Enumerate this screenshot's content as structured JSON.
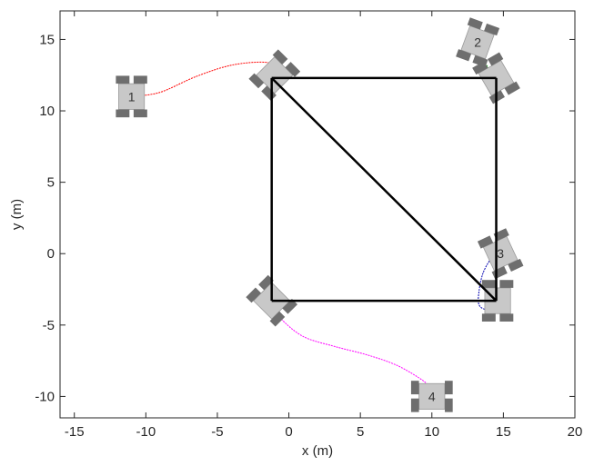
{
  "chart_data": {
    "type": "scatter",
    "title": "",
    "xlabel": "x (m)",
    "ylabel": "y (m)",
    "xlim": [
      -16,
      20
    ],
    "ylim": [
      -11.5,
      17
    ],
    "xticks": [
      -15,
      -10,
      -5,
      0,
      5,
      10,
      15,
      20
    ],
    "xtick_labels": [
      "-15",
      "-10",
      "-5",
      "0",
      "5",
      "10",
      "15",
      "20"
    ],
    "yticks": [
      -10,
      -5,
      0,
      5,
      10,
      15
    ],
    "ytick_labels": [
      "-10",
      "-5",
      "0",
      "5",
      "10",
      "15"
    ],
    "grid": false,
    "legend": "none",
    "formation": {
      "color": "#000000",
      "vertices": [
        {
          "x": -1.2,
          "y": 12.3
        },
        {
          "x": 14.5,
          "y": 12.3
        },
        {
          "x": 14.5,
          "y": -3.3
        },
        {
          "x": -1.2,
          "y": -3.3
        }
      ],
      "edges": [
        [
          0,
          1
        ],
        [
          1,
          2
        ],
        [
          2,
          3
        ],
        [
          3,
          0
        ],
        [
          0,
          2
        ]
      ]
    },
    "robots": [
      {
        "label": "1",
        "color": "#ff0000",
        "start": {
          "x": -11,
          "y": 11,
          "heading": 0
        },
        "end": {
          "x": -1,
          "y": 12.5,
          "heading": -45
        },
        "path": [
          [
            -11,
            11
          ],
          [
            -9,
            11.3
          ],
          [
            -6.5,
            12.4
          ],
          [
            -4,
            13.2
          ],
          [
            -1.6,
            13.4
          ],
          [
            -0.8,
            12.9
          ],
          [
            -1.1,
            12.3
          ]
        ]
      },
      {
        "label": "2",
        "color": "#00a000",
        "start": {
          "x": 13.2,
          "y": 14.8,
          "heading": -20
        },
        "end": {
          "x": 14.5,
          "y": 12.3,
          "heading": 30
        },
        "path": [
          [
            13.2,
            14.8
          ],
          [
            13.4,
            14.2
          ],
          [
            13.7,
            13.4
          ],
          [
            14.1,
            12.8
          ],
          [
            14.5,
            12.3
          ]
        ]
      },
      {
        "label": "3",
        "color": "#0000b0",
        "start": {
          "x": 14.8,
          "y": 0,
          "heading": 25
        },
        "end": {
          "x": 14.6,
          "y": -3.3,
          "heading": 0
        },
        "path": [
          [
            14.8,
            0
          ],
          [
            14.2,
            -0.3
          ],
          [
            13.6,
            -1.3
          ],
          [
            13.3,
            -2.6
          ],
          [
            13.3,
            -3.6
          ],
          [
            13.9,
            -3.9
          ],
          [
            14.5,
            -3.4
          ],
          [
            14.6,
            -3.3
          ]
        ]
      },
      {
        "label": "4",
        "color": "#ff00ff",
        "start": {
          "x": 10,
          "y": -10,
          "heading": 90
        },
        "end": {
          "x": -1.2,
          "y": -3.3,
          "heading": 45
        },
        "path": [
          [
            9.9,
            -9.9
          ],
          [
            9.8,
            -9.3
          ],
          [
            9.1,
            -8.7
          ],
          [
            7.5,
            -7.8
          ],
          [
            5.5,
            -7.1
          ],
          [
            3.2,
            -6.5
          ],
          [
            1.0,
            -5.8
          ],
          [
            -0.6,
            -4.5
          ],
          [
            -1.0,
            -3.6
          ]
        ]
      }
    ]
  },
  "colors": {
    "axes": "#262626",
    "robot_body": "#c8c8c8",
    "robot_wheel": "#6e6e6e",
    "formation": "#000000"
  }
}
